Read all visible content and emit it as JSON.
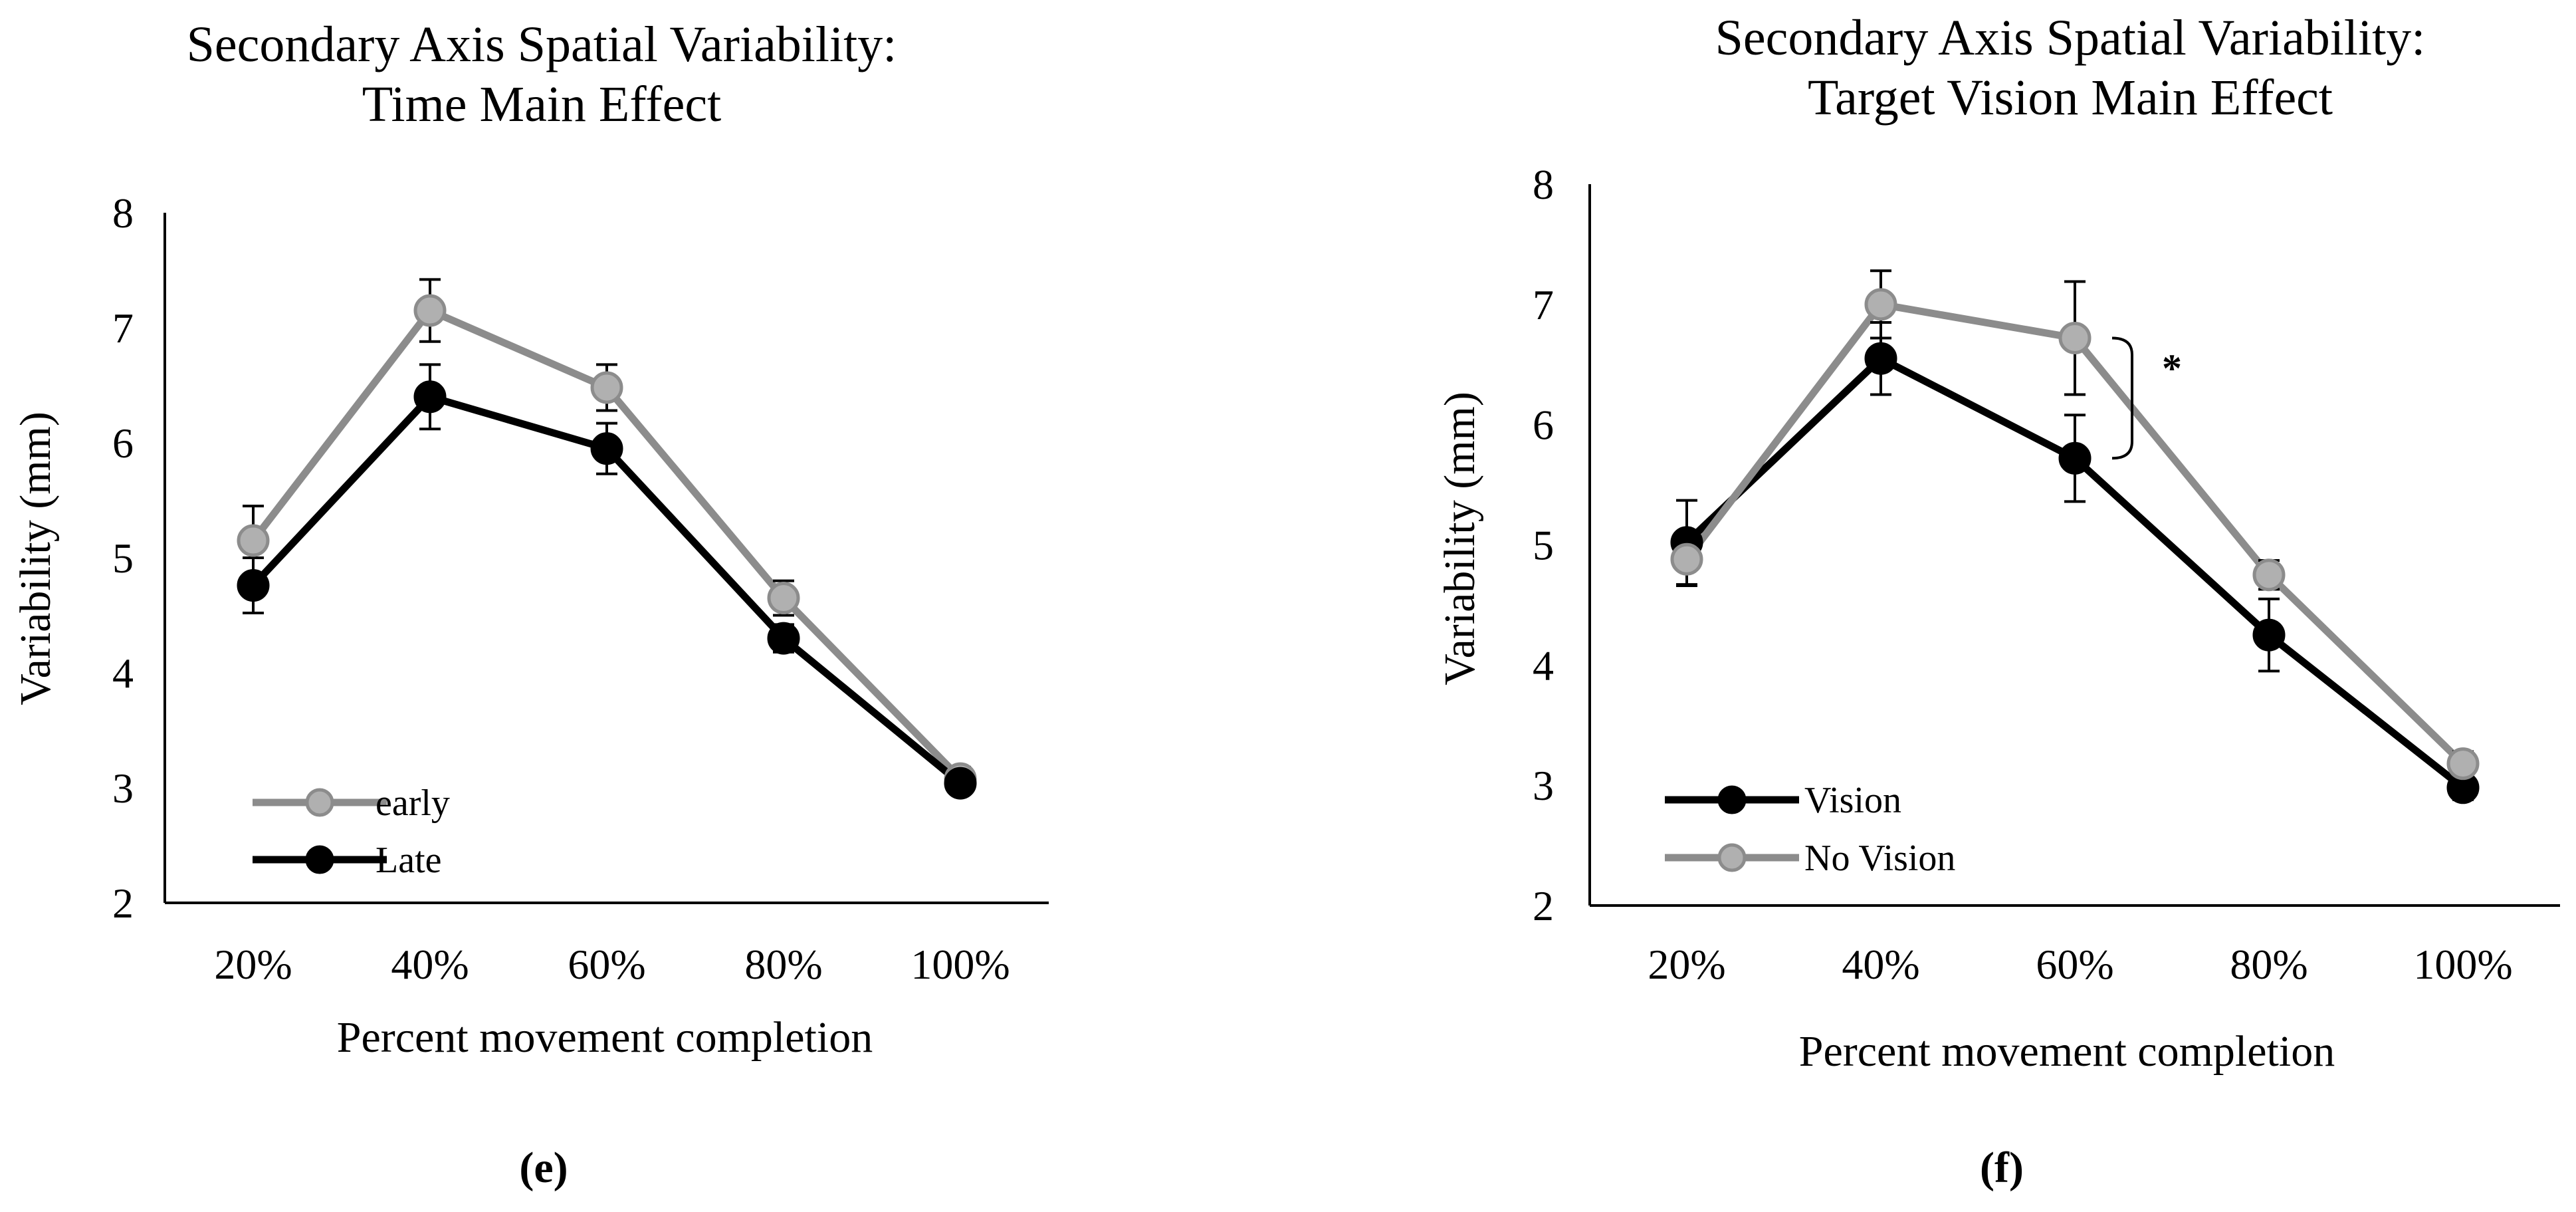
{
  "chart_data": [
    {
      "type": "line",
      "id": "e",
      "title": [
        "Secondary Axis Spatial Variability:",
        "Time Main Effect"
      ],
      "xlabel": "Percent movement completion",
      "ylabel": "Variability (mm)",
      "categories": [
        "20%",
        "40%",
        "60%",
        "80%",
        "100%"
      ],
      "ylim": [
        2,
        8
      ],
      "yticks": [
        "2",
        "3",
        "4",
        "5",
        "6",
        "7",
        "8"
      ],
      "grid": false,
      "legend_position": "bottom-left",
      "series": [
        {
          "name": "early",
          "color": "#8c8c8c",
          "marker_fill": "#b0b0b0",
          "values": [
            5.15,
            7.15,
            6.48,
            4.65,
            3.08
          ],
          "errors": [
            0.3,
            0.27,
            0.2,
            0.15,
            0.1
          ]
        },
        {
          "name": "Late",
          "color": "#000000",
          "marker_fill": "#000000",
          "values": [
            4.76,
            6.4,
            5.95,
            4.3,
            3.04
          ],
          "errors": [
            0.24,
            0.28,
            0.22,
            0.12,
            0.08
          ]
        }
      ],
      "caption": "(e)"
    },
    {
      "type": "line",
      "id": "f",
      "title": [
        "Secondary Axis Spatial Variability:",
        "Target Vision Main Effect"
      ],
      "xlabel": "Percent movement completion",
      "ylabel": "Variability (mm)",
      "categories": [
        "20%",
        "40%",
        "60%",
        "80%",
        "100%"
      ],
      "ylim": [
        2,
        8
      ],
      "yticks": [
        "2",
        "3",
        "4",
        "5",
        "6",
        "7",
        "8"
      ],
      "grid": false,
      "legend_position": "bottom-left",
      "significance_marker": "*",
      "series": [
        {
          "name": "Vision",
          "color": "#000000",
          "marker_fill": "#000000",
          "values": [
            5.02,
            6.55,
            5.72,
            4.25,
            2.98
          ],
          "errors": [
            0.35,
            0.3,
            0.36,
            0.3,
            0.1
          ]
        },
        {
          "name": "No Vision",
          "color": "#8c8c8c",
          "marker_fill": "#b0b0b0",
          "values": [
            4.88,
            7.0,
            6.72,
            4.75,
            3.18
          ],
          "errors": [
            0.22,
            0.28,
            0.47,
            0.12,
            0.1
          ]
        }
      ],
      "caption": "(f)"
    }
  ]
}
